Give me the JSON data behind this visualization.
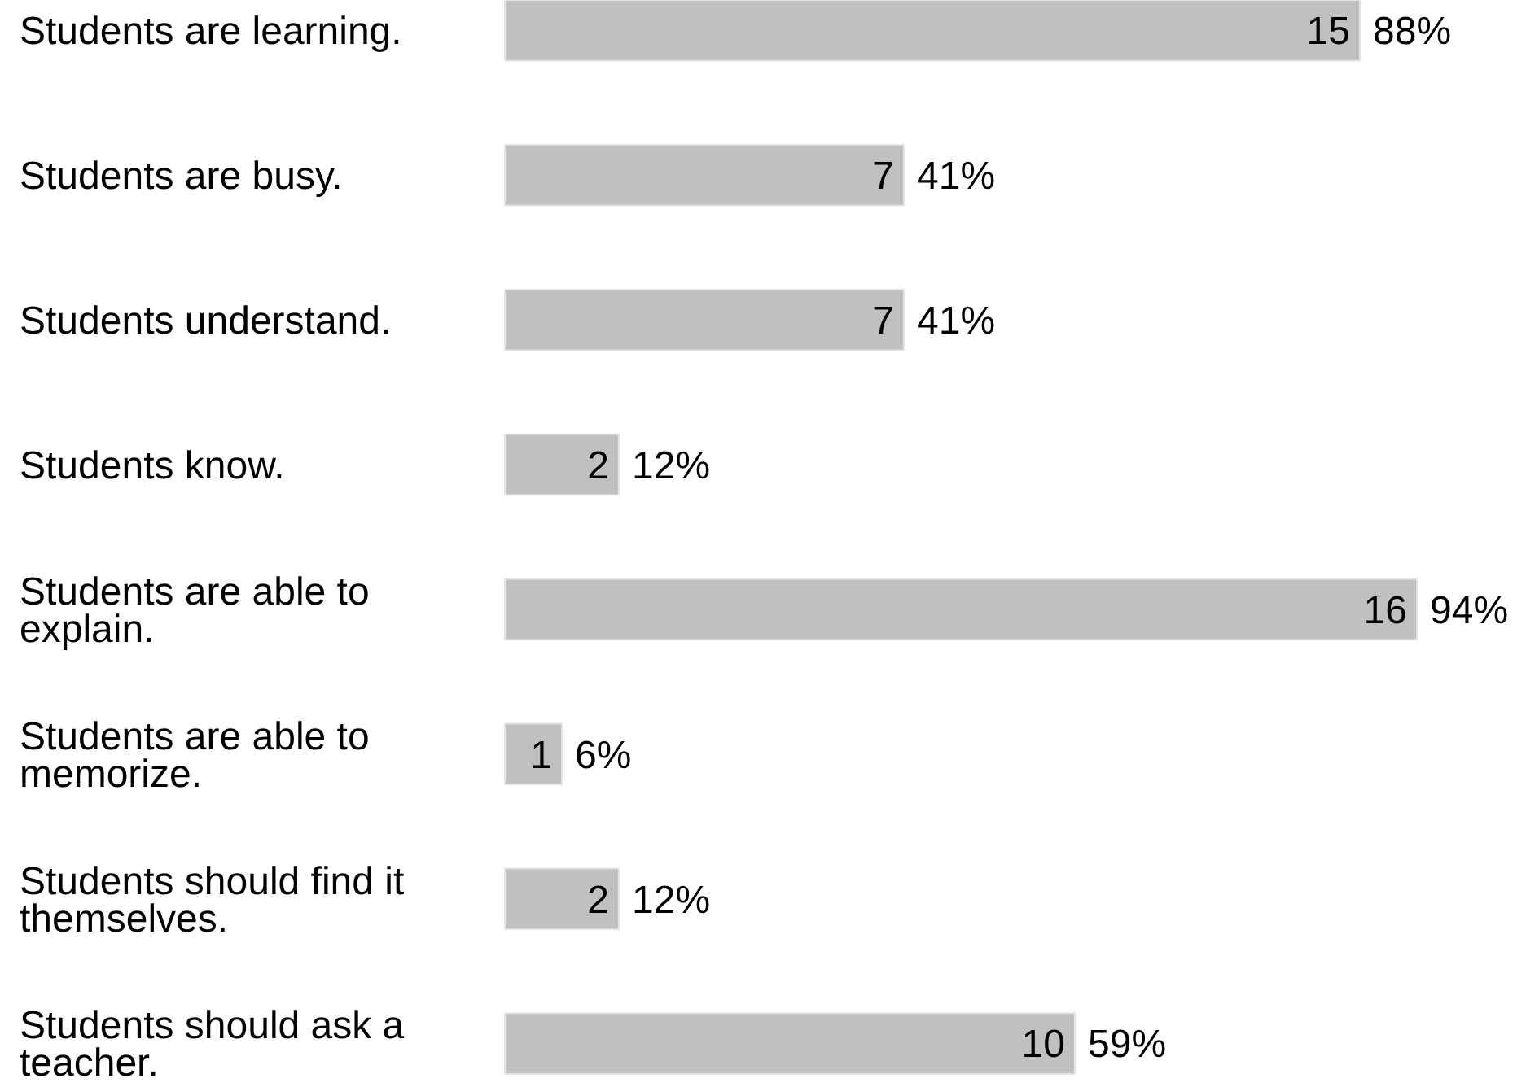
{
  "chart_data": {
    "type": "bar",
    "orientation": "horizontal",
    "categories": [
      "Students are learning.",
      "Students are busy.",
      "Students understand.",
      "Students know.",
      "Students are able to explain.",
      "Students are able to memorize.",
      "Students should find it themselves.",
      "Students should ask a teacher."
    ],
    "values": [
      15,
      7,
      7,
      2,
      16,
      1,
      2,
      10
    ],
    "color": "#c0c0c0",
    "data_labels": true,
    "annotations": [
      {
        "text": "88%",
        "x": 15,
        "y": "Students are learning."
      },
      {
        "text": "41%",
        "x": 7,
        "y": "Students are busy."
      },
      {
        "text": "41%",
        "x": 7,
        "y": "Students understand."
      },
      {
        "text": "12%",
        "x": 2,
        "y": "Students know."
      },
      {
        "text": "94%",
        "x": 16,
        "y": "Students are able to explain."
      },
      {
        "text": "6%",
        "x": 1,
        "y": "Students are able to memorize."
      },
      {
        "text": "12%",
        "x": 2,
        "y": "Students should find it themselves."
      },
      {
        "text": "59%",
        "x": 10,
        "y": "Students should ask a teacher."
      }
    ]
  }
}
